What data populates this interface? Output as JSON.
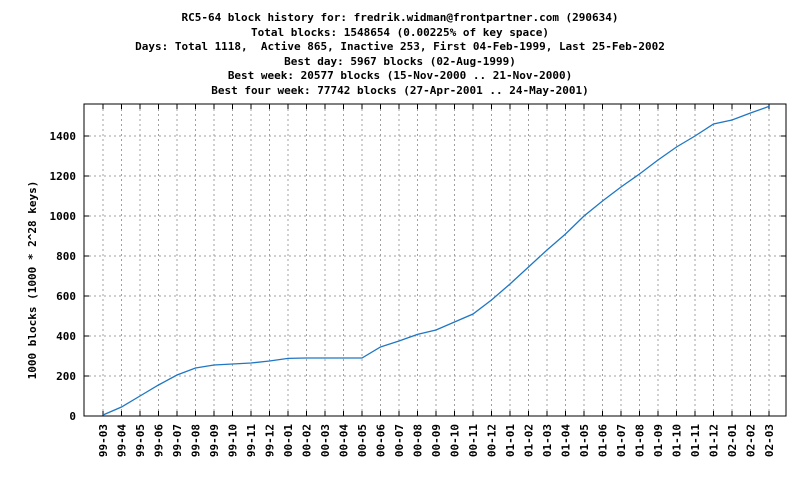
{
  "header": {
    "lines": [
      "RC5-64 block history for: fredrik.widman@frontpartner.com (290634)",
      "Total blocks: 1548654 (0.00225% of key space)",
      "Days: Total 1118,  Active 865, Inactive 253, First 04-Feb-1999, Last 25-Feb-2002",
      "Best day: 5967 blocks (02-Aug-1999)",
      "Best week: 20577 blocks (15-Nov-2000 .. 21-Nov-2000)",
      "Best four week: 77742 blocks (27-Apr-2001 .. 24-May-2001)"
    ]
  },
  "colors": {
    "line": "#1f77c4",
    "grid": "#a0a0a0",
    "frame": "#000000"
  },
  "chart_data": {
    "type": "line",
    "title": "RC5-64 block history for: fredrik.widman@frontpartner.com (290634)",
    "xlabel": "",
    "ylabel": "1000 blocks (1000 * 2^28 keys)",
    "ylim": [
      0,
      1560
    ],
    "yticks": [
      0,
      200,
      400,
      600,
      800,
      1000,
      1200,
      1400
    ],
    "grid": true,
    "x": [
      "99-03",
      "99-04",
      "99-05",
      "99-06",
      "99-07",
      "99-08",
      "99-09",
      "99-10",
      "99-11",
      "99-12",
      "00-01",
      "00-02",
      "00-03",
      "00-04",
      "00-05",
      "00-06",
      "00-07",
      "00-08",
      "00-09",
      "00-10",
      "00-11",
      "00-12",
      "01-01",
      "01-02",
      "01-03",
      "01-04",
      "01-05",
      "01-06",
      "01-07",
      "01-08",
      "01-09",
      "01-10",
      "01-11",
      "01-12",
      "02-01",
      "02-02",
      "02-03"
    ],
    "series": [
      {
        "values": [
          5,
          45,
          100,
          155,
          205,
          240,
          255,
          260,
          265,
          275,
          288,
          290,
          290,
          290,
          290,
          345,
          375,
          408,
          430,
          470,
          510,
          580,
          660,
          745,
          830,
          910,
          1000,
          1075,
          1145,
          1210,
          1280,
          1345,
          1400,
          1460,
          1480,
          1515,
          1548
        ]
      }
    ]
  }
}
